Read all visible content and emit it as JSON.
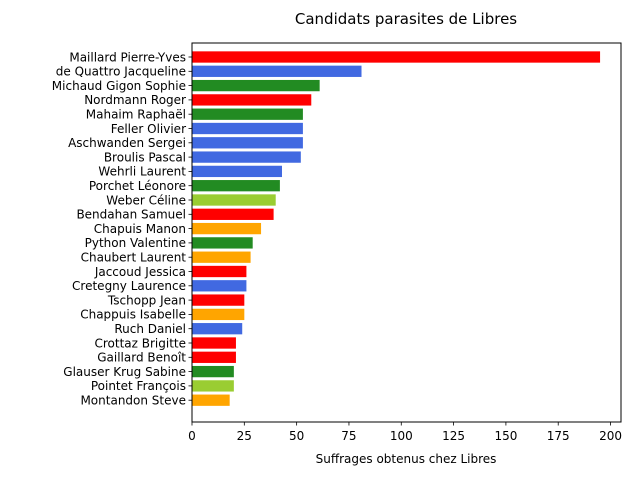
{
  "chart_data": {
    "type": "bar",
    "orientation": "horizontal",
    "title": "Candidats parasites de Libres",
    "xlabel": "Suffrages obtenus chez Libres",
    "ylabel": "",
    "xlim": [
      0,
      205
    ],
    "xticks": [
      0,
      25,
      50,
      75,
      100,
      125,
      150,
      175,
      200
    ],
    "grid": false,
    "categories": [
      "Maillard Pierre-Yves",
      "de Quattro Jacqueline",
      "Michaud Gigon Sophie",
      "Nordmann Roger",
      "Mahaim Raphaël",
      "Feller Olivier",
      "Aschwanden Sergei",
      "Broulis Pascal",
      "Wehrli Laurent",
      "Porchet Léonore",
      "Weber Céline",
      "Bendahan Samuel",
      "Chapuis Manon",
      "Python Valentine",
      "Chaubert Laurent",
      "Jaccoud Jessica",
      "Cretegny Laurence",
      "Tschopp Jean",
      "Chappuis Isabelle",
      "Ruch Daniel",
      "Crottaz Brigitte",
      "Gaillard Benoît",
      "Glauser Krug Sabine",
      "Pointet François",
      "Montandon Steve"
    ],
    "values": [
      195,
      81,
      61,
      57,
      53,
      53,
      53,
      52,
      43,
      42,
      40,
      39,
      33,
      29,
      28,
      26,
      26,
      25,
      25,
      24,
      21,
      21,
      20,
      20,
      18
    ],
    "colors": [
      "#ff0000",
      "#4169e1",
      "#228b22",
      "#ff0000",
      "#228b22",
      "#4169e1",
      "#4169e1",
      "#4169e1",
      "#4169e1",
      "#228b22",
      "#9acd32",
      "#ff0000",
      "#ffa500",
      "#228b22",
      "#ffa500",
      "#ff0000",
      "#4169e1",
      "#ff0000",
      "#ffa500",
      "#4169e1",
      "#ff0000",
      "#ff0000",
      "#228b22",
      "#9acd32",
      "#ffa500"
    ]
  }
}
